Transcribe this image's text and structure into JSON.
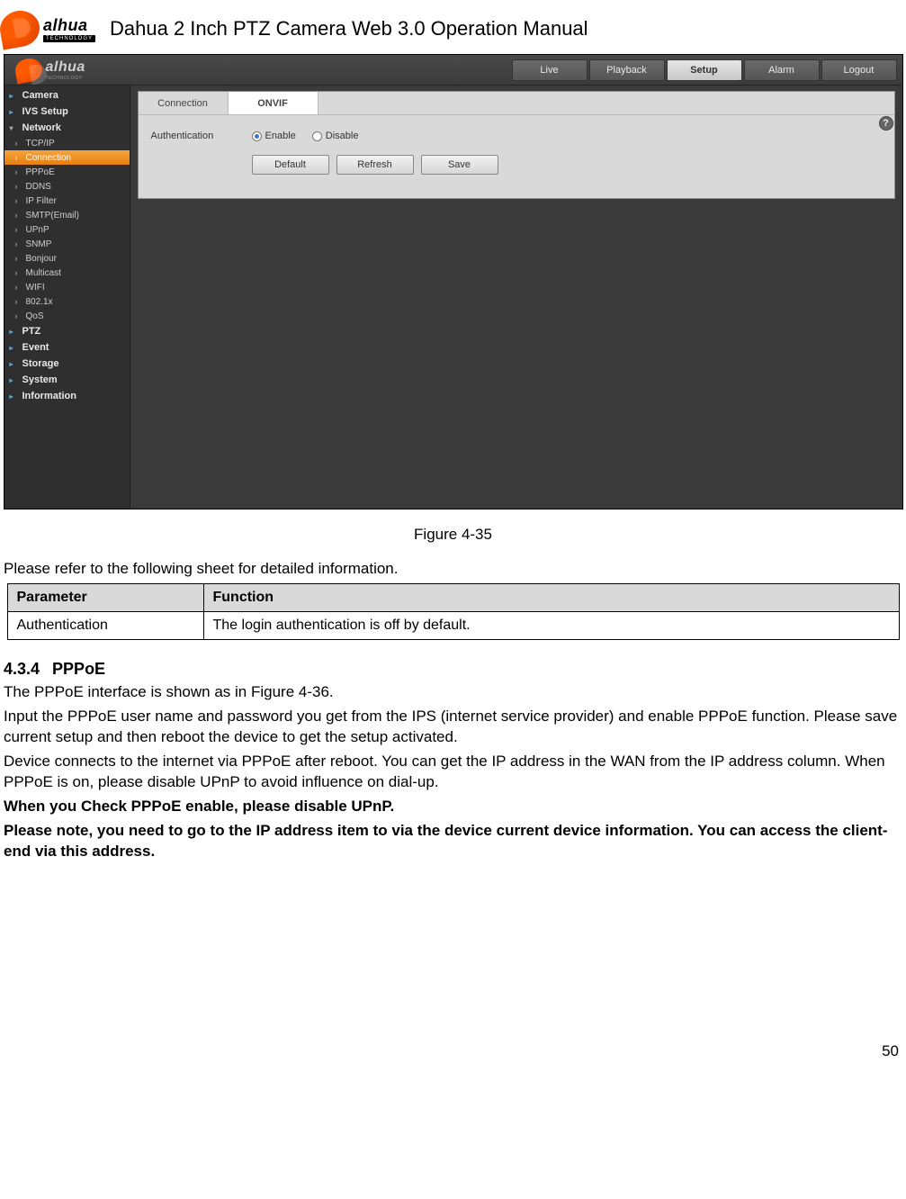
{
  "header": {
    "brand_main": "alhua",
    "brand_sub": "TECHNOLOGY",
    "doc_title": "Dahua 2 Inch PTZ Camera Web 3.0 Operation Manual"
  },
  "screenshot": {
    "brand_main": "alhua",
    "brand_sub": "TECHNOLOGY",
    "nav": {
      "live": "Live",
      "playback": "Playback",
      "setup": "Setup",
      "alarm": "Alarm",
      "logout": "Logout"
    },
    "help_label": "?",
    "sidebar": {
      "camera": "Camera",
      "ivs": "IVS Setup",
      "network": "Network",
      "items": [
        {
          "label": "TCP/IP"
        },
        {
          "label": "Connection"
        },
        {
          "label": "PPPoE"
        },
        {
          "label": "DDNS"
        },
        {
          "label": "IP Filter"
        },
        {
          "label": "SMTP(Email)"
        },
        {
          "label": "UPnP"
        },
        {
          "label": "SNMP"
        },
        {
          "label": "Bonjour"
        },
        {
          "label": "Multicast"
        },
        {
          "label": "WIFI"
        },
        {
          "label": "802.1x"
        },
        {
          "label": "QoS"
        }
      ],
      "ptz": "PTZ",
      "event": "Event",
      "storage": "Storage",
      "system": "System",
      "info": "Information"
    },
    "panel": {
      "tab_connection": "Connection",
      "tab_onvif": "ONVIF",
      "auth_label": "Authentication",
      "enable": "Enable",
      "disable": "Disable",
      "btn_default": "Default",
      "btn_refresh": "Refresh",
      "btn_save": "Save"
    }
  },
  "figure_caption": "Figure 4-35",
  "lead": "Please refer to the following sheet for detailed information.",
  "table": {
    "h1": "Parameter",
    "h2": "Function",
    "r1c1": "Authentication",
    "r1c2": "The login authentication is off by default."
  },
  "section": {
    "num": "4.3.4",
    "title": "PPPoE",
    "p1": "The PPPoE interface is shown as in Figure 4-36.",
    "p2": "Input the PPPoE user name and password you get from the IPS (internet service provider) and enable PPPoE function. Please save current setup and then reboot the device to get the setup activated.",
    "p3": "Device connects to the internet via PPPoE after reboot. You can get the IP address in the WAN from the IP address column. When PPPoE is on, please disable UPnP to avoid influence on dial-up.",
    "p4": "When you Check PPPoE enable, please disable UPnP.",
    "p5": "Please note, you need to go to the IP address item to via the device current device information. You can access the client-end via this address."
  },
  "page_num": "50"
}
